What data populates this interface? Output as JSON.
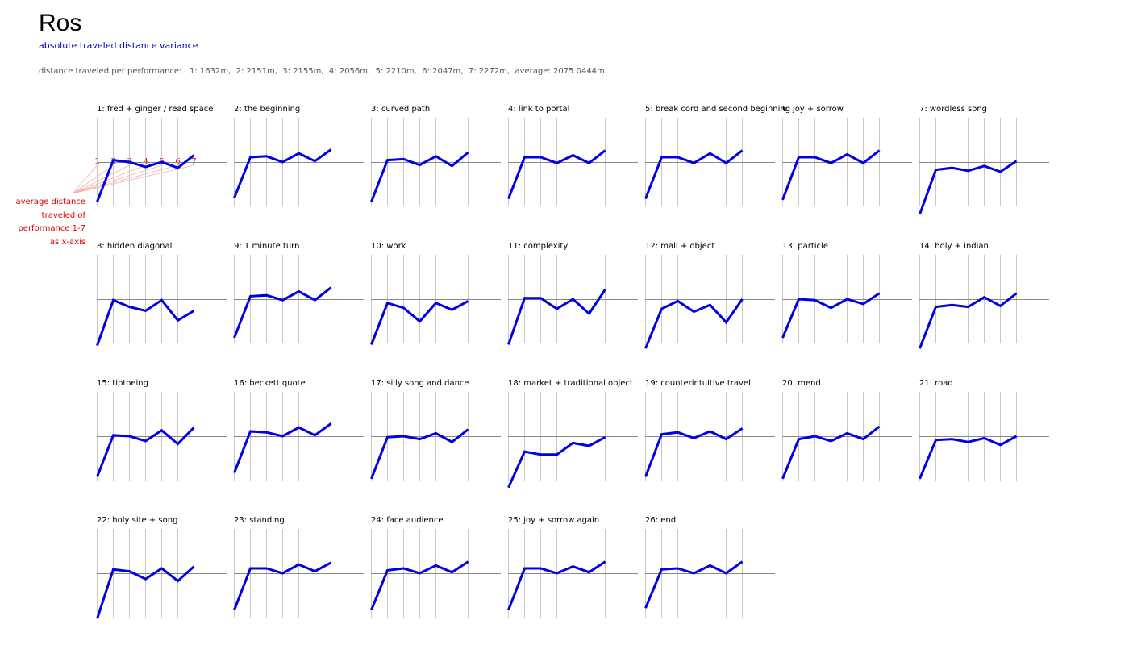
{
  "header": {
    "title": "Ros",
    "subtitle": "absolute traveled distance variance",
    "summary_label": "distance traveled per performance:",
    "summary_items": [
      "1: 1632m,",
      "2: 2151m,",
      "3: 2155m,",
      "4: 2056m,",
      "5: 2210m,",
      "6: 2047m,",
      "7: 2272m,",
      "average: 2075.0444m"
    ]
  },
  "legend": {
    "numbers": [
      "1",
      "2",
      "3",
      "4",
      "5",
      "6",
      "7"
    ],
    "lines": [
      "average distance",
      "traveled of",
      "performance 1-7",
      "as x-axis"
    ]
  },
  "colors": {
    "series": "#0000e0",
    "legend": "#e00000",
    "grid": "#c8c8c8",
    "baseline": "#888888"
  },
  "chart_data": {
    "type": "line",
    "x": [
      1,
      2,
      3,
      4,
      5,
      6,
      7
    ],
    "baseline_value": 0,
    "panels": [
      {
        "title": "1: fred + ginger / read space",
        "values": [
          -41,
          2,
          0,
          -5,
          0,
          -6,
          7
        ]
      },
      {
        "title": "2: the beginning",
        "values": [
          -37,
          5,
          6,
          0,
          9,
          1,
          13
        ]
      },
      {
        "title": "3: curved path",
        "values": [
          -41,
          2,
          3,
          -3,
          6,
          -4,
          10
        ]
      },
      {
        "title": "4: link to portal",
        "values": [
          -38,
          5,
          5,
          -1,
          7,
          -1,
          12
        ]
      },
      {
        "title": "5: break cord and second beginning",
        "values": [
          -38,
          5,
          5,
          -1,
          9,
          -1,
          12
        ]
      },
      {
        "title": "6: joy + sorrow",
        "values": [
          -39,
          5,
          5,
          -1,
          8,
          -1,
          12
        ]
      },
      {
        "title": "7: wordless song",
        "values": [
          -54,
          -8,
          -6,
          -9,
          -4,
          -10,
          1
        ]
      },
      {
        "title": "8: hidden diagonal",
        "values": [
          -48,
          -1,
          -8,
          -12,
          -1,
          -22,
          -12
        ]
      },
      {
        "title": "9: 1 minute turn",
        "values": [
          -40,
          3,
          4,
          -1,
          8,
          -1,
          12
        ]
      },
      {
        "title": "10: work",
        "values": [
          -47,
          -4,
          -9,
          -23,
          -4,
          -11,
          -2
        ]
      },
      {
        "title": "11: complexity",
        "values": [
          -47,
          1,
          1,
          -10,
          0,
          -15,
          10
        ]
      },
      {
        "title": "12: mall + object",
        "values": [
          -51,
          -10,
          -2,
          -13,
          -6,
          -24,
          0
        ]
      },
      {
        "title": "13: particle",
        "values": [
          -40,
          0,
          -1,
          -9,
          0,
          -5,
          6
        ]
      },
      {
        "title": "14: holy + indian",
        "values": [
          -51,
          -8,
          -6,
          -8,
          2,
          -7,
          6
        ]
      },
      {
        "title": "15: tiptoeing",
        "values": [
          -42,
          1,
          0,
          -5,
          6,
          -8,
          9
        ]
      },
      {
        "title": "16: beckett quote",
        "values": [
          -38,
          5,
          4,
          0,
          9,
          1,
          13
        ]
      },
      {
        "title": "17: silly song and dance",
        "values": [
          -44,
          -1,
          0,
          -3,
          3,
          -6,
          7
        ]
      },
      {
        "title": "18: market + traditional object",
        "values": [
          -53,
          -16,
          -19,
          -19,
          -7,
          -10,
          -1
        ]
      },
      {
        "title": "19: counterintuitive travel",
        "values": [
          -42,
          2,
          4,
          -2,
          5,
          -3,
          8
        ]
      },
      {
        "title": "20: mend",
        "values": [
          -44,
          -3,
          0,
          -5,
          3,
          -3,
          10
        ]
      },
      {
        "title": "21: road",
        "values": [
          -44,
          -4,
          -3,
          -6,
          -2,
          -9,
          0
        ]
      },
      {
        "title": "22: holy site + song",
        "values": [
          -47,
          4,
          2,
          -6,
          5,
          -8,
          7
        ]
      },
      {
        "title": "23: standing",
        "values": [
          -38,
          5,
          5,
          0,
          9,
          2,
          11
        ]
      },
      {
        "title": "24: face audience",
        "values": [
          -38,
          3,
          5,
          0,
          8,
          1,
          12
        ]
      },
      {
        "title": "25: joy + sorrow again",
        "values": [
          -38,
          5,
          5,
          0,
          7,
          1,
          12
        ]
      },
      {
        "title": "26: end",
        "values": [
          -36,
          4,
          5,
          0,
          8,
          0,
          12
        ]
      }
    ]
  }
}
